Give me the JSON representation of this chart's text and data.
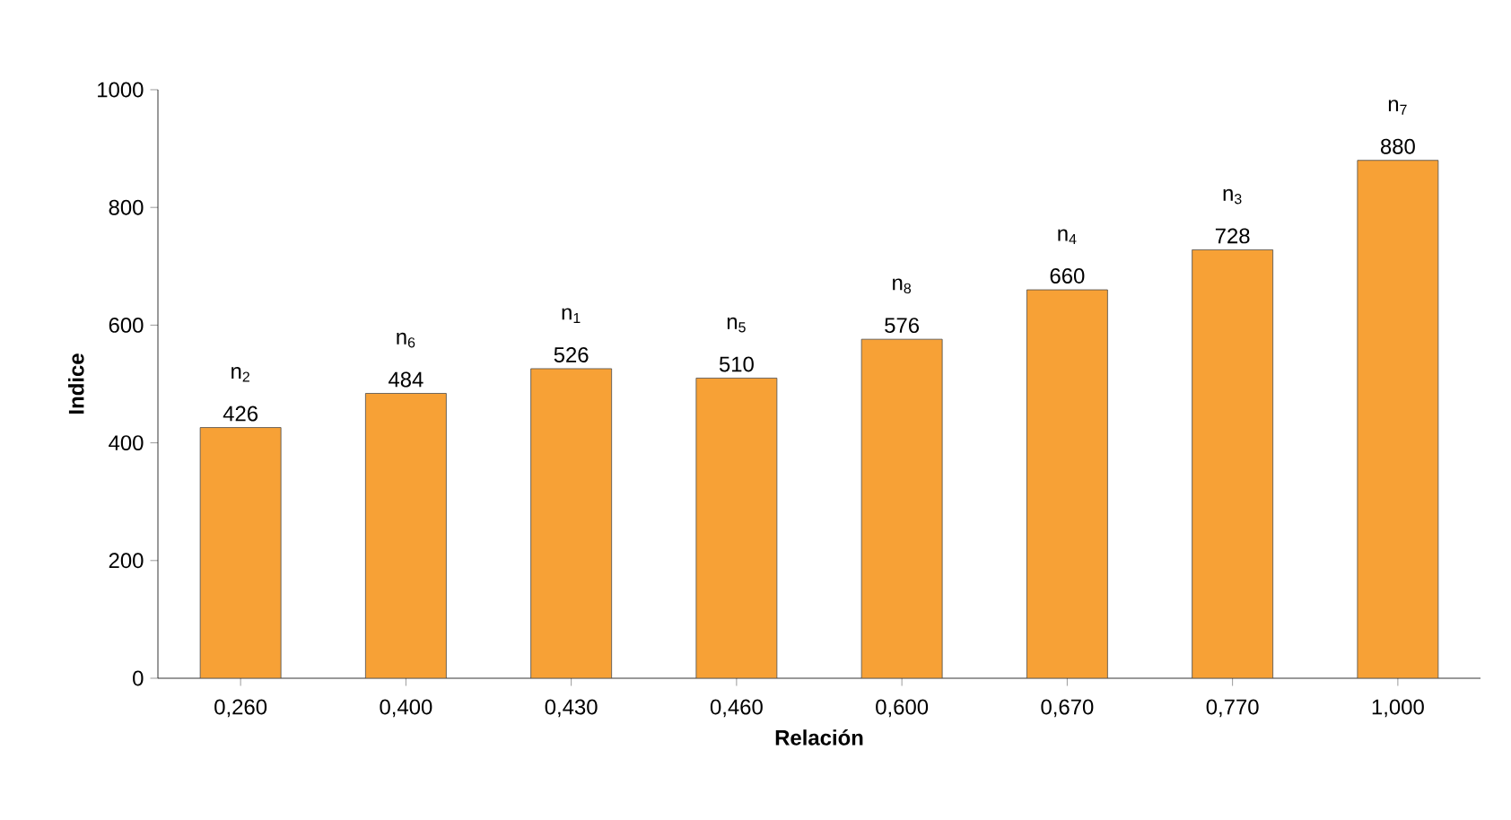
{
  "chart_data": {
    "type": "bar",
    "xlabel": "Relación",
    "ylabel": "Indice",
    "categories": [
      "0,260",
      "0,400",
      "0,430",
      "0,460",
      "0,600",
      "0,670",
      "0,770",
      "1,000"
    ],
    "values": [
      426,
      484,
      526,
      510,
      576,
      660,
      728,
      880
    ],
    "color": "#f7a136",
    "ylim": [
      0,
      1000
    ],
    "yticks": [
      0,
      200,
      400,
      600,
      800,
      1000
    ],
    "grid": false,
    "data_labels": true,
    "annotations": [
      {
        "text": "n$_{2}$",
        "x": "0,260",
        "y": 426
      },
      {
        "text": "n$_{6}$",
        "x": "0,400",
        "y": 484
      },
      {
        "text": "n$_{1}$",
        "x": "0,430",
        "y": 526
      },
      {
        "text": "n$_{5}$",
        "x": "0,460",
        "y": 510
      },
      {
        "text": "n$_{8}$",
        "x": "0,600",
        "y": 576
      },
      {
        "text": "n$_{4}$",
        "x": "0,670",
        "y": 660
      },
      {
        "text": "n$_{3}$",
        "x": "0,770",
        "y": 728
      },
      {
        "text": "n$_{7}$",
        "x": "1,000",
        "y": 880
      }
    ]
  }
}
